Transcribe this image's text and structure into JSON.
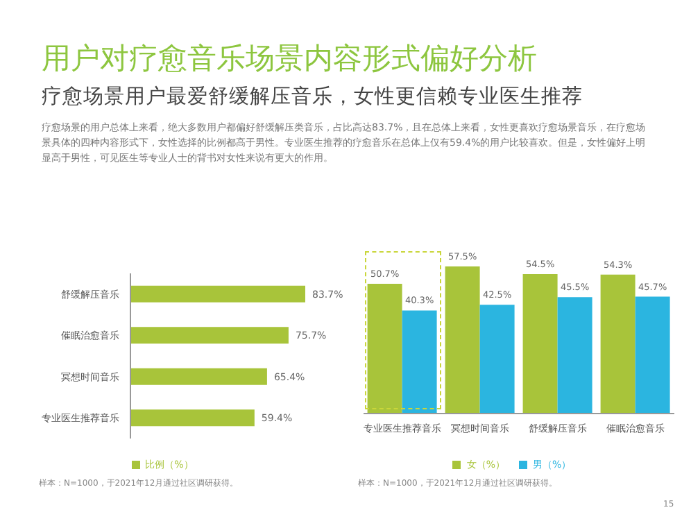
{
  "chart_data": [
    {
      "type": "bar",
      "orientation": "horizontal",
      "title": "用户对疗愈音乐场景内容形式偏好分析",
      "subtitle": "疗愈场景用户最爱舒缓解压音乐，女性更信赖专业医生推荐",
      "annotations": [
        "疗愈场景的用户总体上来看，绝大多数用户都偏好舒缓解压类音乐，占比高达83.7%，且在总体上来看，女性更喜欢疗愈场景音乐，在疗愈场景具体的四种内容形式下，女性选择的比例都高于男性。专业医生推荐的疗愈音乐在总体上仅有59.4%的用户比较喜欢。但是，女性偏好上明显高于男性，可见医生等专业人士的背书对女性来说有更大的作用。",
        "样本：N=1000，于2021年12月通过社区调研获得。"
      ],
      "categories": [
        "舒缓解压音乐",
        "催眠治愈音乐",
        "冥想时间音乐",
        "专业医生推荐音乐"
      ],
      "series": [
        {
          "name": "比例（%）",
          "color": "#a8c43a",
          "values": [
            83.7,
            75.7,
            65.4,
            59.4
          ],
          "value_labels": [
            "83.7%",
            "75.7%",
            "65.4%",
            "59.4%"
          ]
        }
      ],
      "legend": "bottom"
    },
    {
      "type": "bar",
      "annotations": [
        "样本：N=1000，于2021年12月通过社区调研获得。",
        "15"
      ],
      "categories": [
        "专业医生推荐音乐",
        "冥想时间音乐",
        "舒缓解压音乐",
        "催眠治愈音乐"
      ],
      "series": [
        {
          "name": "女（%）",
          "color": "#a8c43a",
          "values": [
            50.7,
            57.5,
            54.5,
            54.3
          ],
          "value_labels": [
            "50.7%",
            "57.5%",
            "54.5%",
            "54.3%"
          ]
        },
        {
          "name": "男（%）",
          "color": "#2bb5e0",
          "values": [
            40.3,
            42.5,
            45.5,
            45.7
          ],
          "value_labels": [
            "40.3%",
            "42.5%",
            "45.5%",
            "45.7%"
          ]
        }
      ],
      "legend": "bottom"
    }
  ]
}
